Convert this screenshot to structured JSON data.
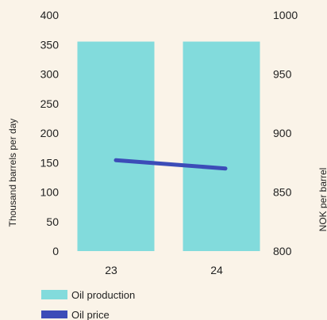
{
  "chart_data": {
    "type": "bar",
    "categories": [
      "23",
      "24"
    ],
    "series": [
      {
        "name": "Oil production",
        "type": "bar",
        "axis": "left",
        "values": [
          355,
          355
        ],
        "color": "#82dbdc"
      },
      {
        "name": "Oil price",
        "type": "line",
        "axis": "right",
        "values": [
          877,
          870
        ],
        "color": "#3c4cb8"
      }
    ],
    "ylabel": "Thousand barrels per day",
    "ylabel_right": "NOK per barrel",
    "ylim": [
      0,
      400
    ],
    "ylim_right": [
      800,
      1000
    ],
    "yticks": [
      "0",
      "50",
      "100",
      "150",
      "200",
      "250",
      "300",
      "350",
      "400"
    ],
    "yticks_right": [
      "800",
      "850",
      "900",
      "950",
      "1000"
    ],
    "grid": false,
    "legend_position": "bottom-left"
  }
}
